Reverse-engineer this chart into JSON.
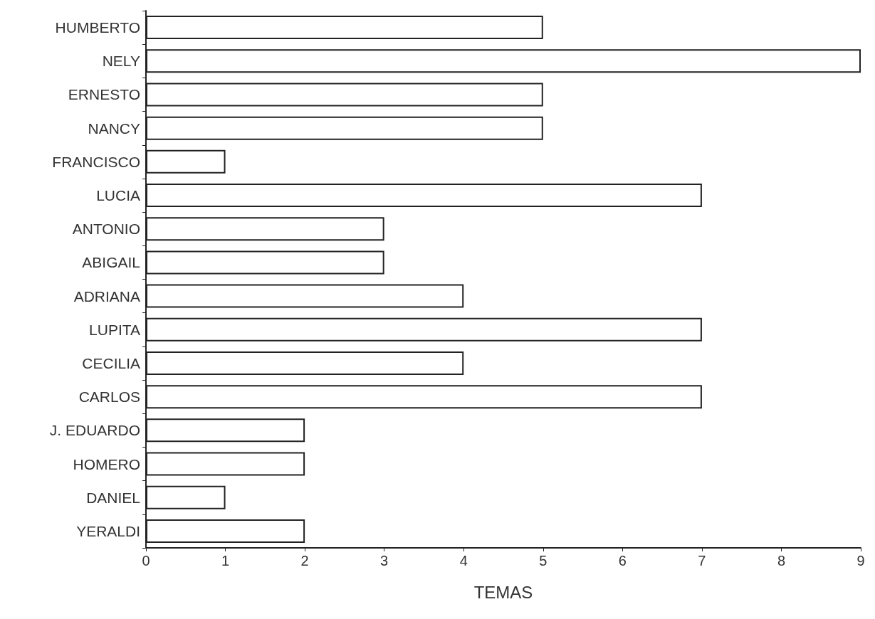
{
  "chart_data": {
    "type": "bar",
    "orientation": "horizontal",
    "xlabel": "TEMAS",
    "categories": [
      "HUMBERTO",
      "NELY",
      "ERNESTO",
      "NANCY",
      "FRANCISCO",
      "LUCIA",
      "ANTONIO",
      "ABIGAIL",
      "ADRIANA",
      "LUPITA",
      "CECILIA",
      "CARLOS",
      "J. EDUARDO",
      "HOMERO",
      "DANIEL",
      "YERALDI"
    ],
    "values": [
      5,
      9,
      5,
      5,
      1,
      7,
      3,
      3,
      4,
      7,
      4,
      7,
      2,
      2,
      1,
      2
    ],
    "color": "#ffffff",
    "xlim": [
      0,
      9
    ],
    "xticks": [
      0,
      1,
      2,
      3,
      4,
      5,
      6,
      7,
      8,
      9
    ],
    "grid": false
  }
}
